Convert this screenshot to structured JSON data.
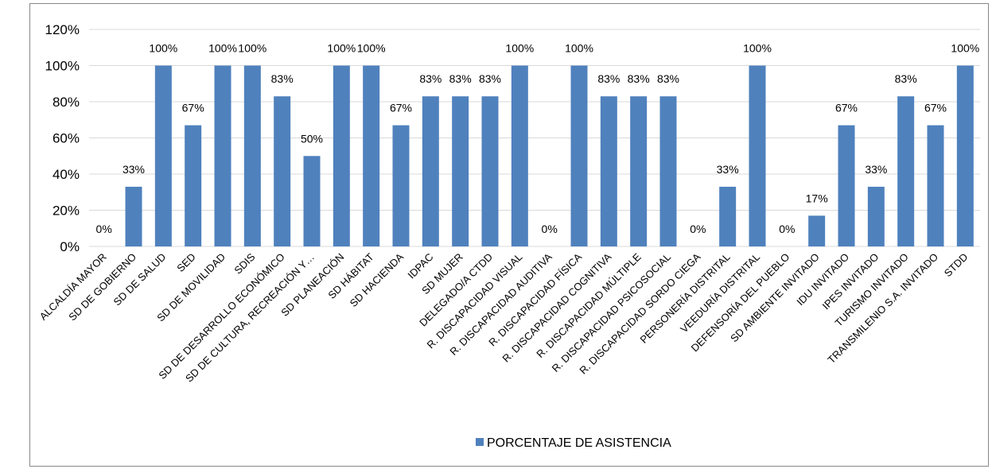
{
  "chart_data": {
    "type": "bar",
    "categories": [
      "ALCALDÍA MAYOR",
      "SD  DE GOBIERNO",
      "SD DE SALUD",
      "SED",
      "SD DE MOVILIDAD",
      "SDIS",
      "SD  DE DESARROLLO ECONÓMICO",
      "SD DE CULTURA, RECREACIÓN Y…",
      "SD  PLANEACIÓN",
      "SD  HÁBITAT",
      "SD HACIENDA",
      "IDPAC",
      "SD  MUJER",
      "DELEGADO/A  CTDD",
      "R.  DISCAPACIDAD VISUAL",
      "R.  DISCAPACIDAD AUDITIVA",
      "R.  DISCAPACIDAD FÍSICA",
      "R.  DISCAPACIDAD COGNITIVA",
      "R.  DISCAPACIDAD MÚLTIPLE",
      "R.  DISCAPACIDAD PSICOSOCIAL",
      "R.  DISCAPACIDAD SORDO CIEGA",
      "PERSONERÍA DISTRITAL",
      "VEEDURÍA DISTRITAL",
      "DEFENSORÍA DEL PUEBLO",
      "SD  AMBIENTE INVITADO",
      "IDU  INVITADO",
      "IPES  INVITADO",
      "TURISMO  INVITADO",
      "TRANSMILENIO S.A.  INVITADO",
      "STDD"
    ],
    "series": [
      {
        "name": "PORCENTAJE DE ASISTENCIA",
        "color": "#4f81bd",
        "values": [
          0,
          33,
          100,
          67,
          100,
          100,
          83,
          50,
          100,
          100,
          67,
          83,
          83,
          83,
          100,
          0,
          100,
          83,
          83,
          83,
          0,
          33,
          100,
          0,
          17,
          67,
          33,
          83,
          67,
          100
        ],
        "value_labels": [
          "0%",
          "33%",
          "100%",
          "67%",
          "100%",
          "100%",
          "83%",
          "50%",
          "100%",
          "100%",
          "67%",
          "83%",
          "83%",
          "83%",
          "100%",
          "0%",
          "100%",
          "83%",
          "83%",
          "83%",
          "0%",
          "33%",
          "100%",
          "0%",
          "17%",
          "67%",
          "33%",
          "83%",
          "67%",
          "100%"
        ]
      }
    ],
    "ylim": [
      0,
      120
    ],
    "yticks": [
      {
        "value": 0,
        "label": "0%"
      },
      {
        "value": 20,
        "label": "20%"
      },
      {
        "value": 40,
        "label": "40%"
      },
      {
        "value": 60,
        "label": "60%"
      },
      {
        "value": 80,
        "label": "80%"
      },
      {
        "value": 100,
        "label": "100%"
      },
      {
        "value": 120,
        "label": "120%"
      }
    ],
    "grid": true,
    "legend": "bottom"
  }
}
